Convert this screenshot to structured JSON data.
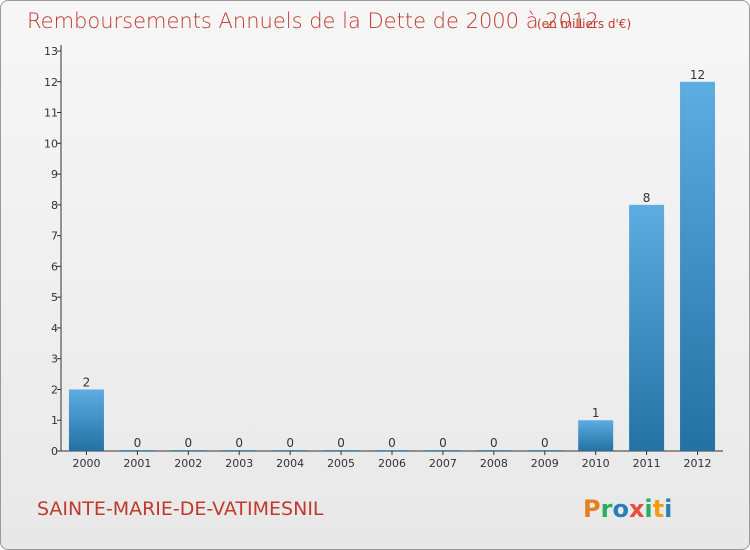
{
  "chart_data": {
    "type": "bar",
    "title": "Remboursements Annuels de la Dette de 2000 à 2012",
    "subtitle": "(en milliers d'€)",
    "xlabel": "",
    "ylabel": "",
    "categories": [
      "2000",
      "2001",
      "2002",
      "2003",
      "2004",
      "2005",
      "2006",
      "2007",
      "2008",
      "2009",
      "2010",
      "2011",
      "2012"
    ],
    "values": [
      2,
      0,
      0,
      0,
      0,
      0,
      0,
      0,
      0,
      0,
      1,
      8,
      12
    ],
    "data_labels": [
      "2",
      "0",
      "0",
      "0",
      "0",
      "0",
      "0",
      "0",
      "0",
      "0",
      "1",
      "8",
      "12"
    ],
    "ylim": [
      0,
      13
    ],
    "yticks": [
      0,
      1,
      2,
      3,
      4,
      5,
      6,
      7,
      8,
      9,
      10,
      11,
      12,
      13
    ],
    "grid": false,
    "legend": "none"
  },
  "commune_name": "SAINTE-MARIE-DE-VATIMESNIL",
  "logo": {
    "letters": [
      "P",
      "r",
      "o",
      "x",
      "i",
      "t",
      "i"
    ],
    "colors": [
      "#e67e22",
      "#27ae60",
      "#2980b9",
      "#e74c3c",
      "#27ae60",
      "#f39c12",
      "#2980b9"
    ]
  },
  "colors": {
    "bar_top": "#5dade2",
    "bar_bottom": "#2471a3",
    "title": "#c0392b",
    "axis": "#333333"
  }
}
